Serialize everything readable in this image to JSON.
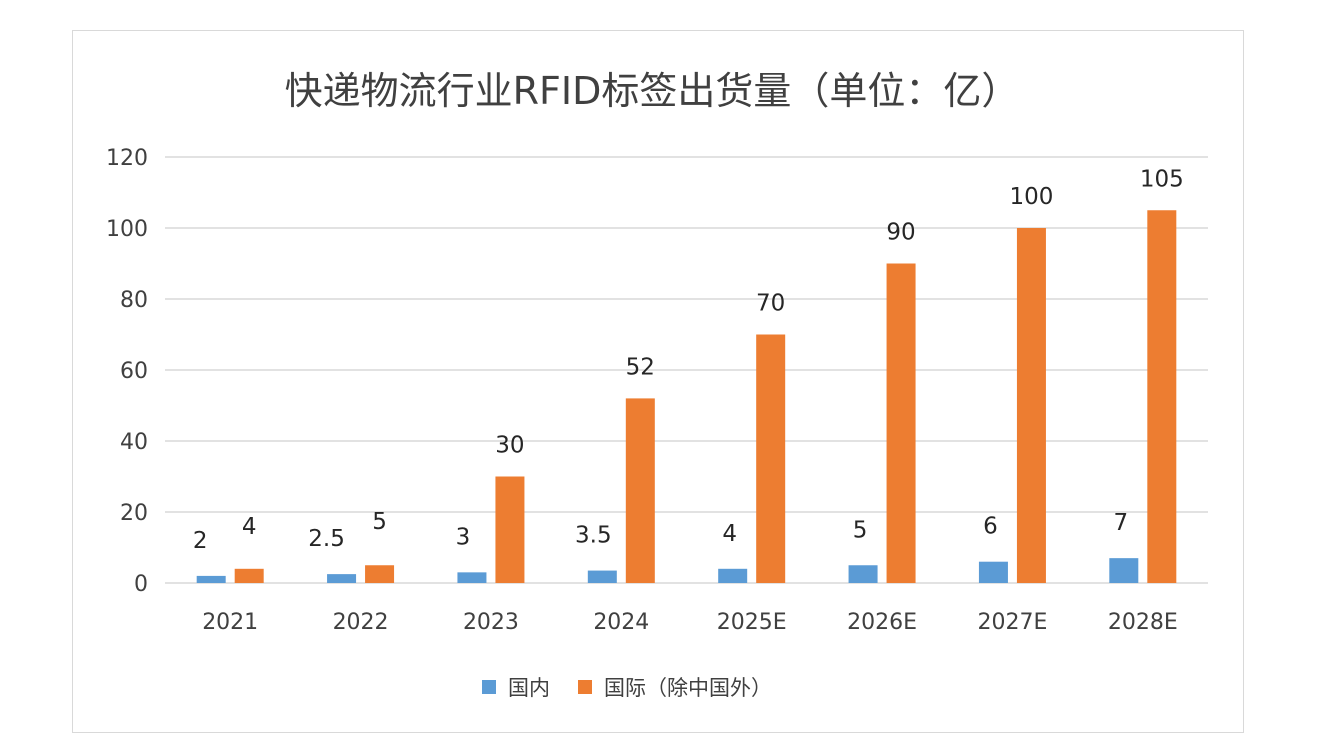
{
  "chart_data": {
    "type": "bar",
    "title": "快递物流行业RFID标签出货量（单位：亿）",
    "xlabel": "",
    "ylabel": "",
    "categories": [
      "2021",
      "2022",
      "2023",
      "2024",
      "2025E",
      "2026E",
      "2027E",
      "2028E"
    ],
    "series": [
      {
        "name": "国内",
        "color": "#5b9bd5",
        "values": [
          2,
          2.5,
          3,
          3.5,
          4,
          5,
          6,
          7
        ]
      },
      {
        "name": "国际（除中国外）",
        "color": "#ed7d31",
        "values": [
          4,
          5,
          30,
          52,
          70,
          90,
          100,
          105
        ]
      }
    ],
    "ylim": [
      0,
      120
    ],
    "yticks": [
      0,
      20,
      40,
      60,
      80,
      100,
      120
    ],
    "grid": true,
    "data_labels": true,
    "legend_position": "bottom"
  }
}
